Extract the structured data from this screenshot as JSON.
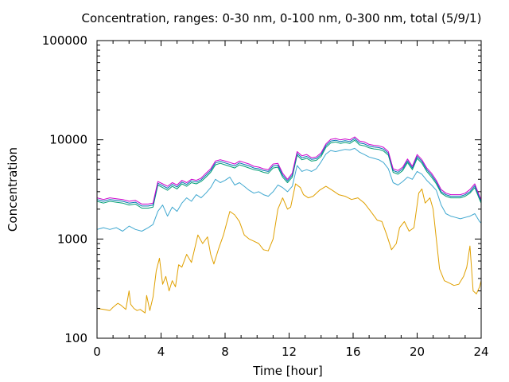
{
  "chart_data": {
    "type": "line",
    "title": "Concentration, ranges: 0-30 nm, 0-100 nm, 0-300 nm, total (5/9/1)",
    "xlabel": "Time [hour]",
    "ylabel": "Concentration",
    "xlim": [
      0,
      24
    ],
    "ylim": [
      100,
      100000
    ],
    "yscale": "log",
    "xticks": [
      "0",
      "4",
      "8",
      "12",
      "16",
      "20",
      "24"
    ],
    "yticks": [
      "100",
      "1000",
      "10000",
      "100000"
    ],
    "grid": false,
    "legend": "none",
    "series": [
      {
        "color": "#e0a000",
        "x": [
          0,
          0.4,
          0.8,
          1.0,
          1.3,
          1.5,
          1.8,
          2.0,
          2.1,
          2.3,
          2.5,
          2.7,
          3.0,
          3.1,
          3.3,
          3.5,
          3.7,
          3.9,
          4.1,
          4.3,
          4.5,
          4.7,
          4.9,
          5.1,
          5.3,
          5.6,
          5.9,
          6.1,
          6.3,
          6.6,
          6.9,
          7.1,
          7.3,
          7.6,
          7.9,
          8.1,
          8.3,
          8.6,
          8.9,
          9.2,
          9.5,
          9.8,
          10.1,
          10.4,
          10.7,
          11.0,
          11.3,
          11.6,
          11.9,
          12.1,
          12.4,
          12.7,
          12.9,
          13.2,
          13.5,
          13.9,
          14.3,
          14.7,
          15.1,
          15.5,
          15.9,
          16.3,
          16.7,
          17.1,
          17.5,
          17.8,
          18.1,
          18.4,
          18.7,
          18.9,
          19.2,
          19.5,
          19.8,
          20.1,
          20.3,
          20.5,
          20.8,
          21.0,
          21.2,
          21.4,
          21.7,
          22.0,
          22.3,
          22.6,
          22.9,
          23.1,
          23.3,
          23.5,
          23.7,
          23.9,
          24
        ],
        "values": [
          200,
          195,
          190,
          205,
          225,
          215,
          195,
          300,
          220,
          200,
          190,
          195,
          180,
          270,
          190,
          260,
          480,
          640,
          350,
          420,
          300,
          380,
          330,
          550,
          520,
          700,
          580,
          800,
          1100,
          900,
          1050,
          700,
          560,
          800,
          1100,
          1450,
          1900,
          1750,
          1500,
          1100,
          1000,
          950,
          900,
          780,
          760,
          1000,
          2000,
          2600,
          2000,
          2100,
          3600,
          3300,
          2800,
          2600,
          2700,
          3100,
          3400,
          3100,
          2800,
          2700,
          2500,
          2600,
          2300,
          1900,
          1550,
          1500,
          1100,
          780,
          900,
          1300,
          1500,
          1200,
          1300,
          2900,
          3200,
          2300,
          2600,
          2000,
          1000,
          500,
          380,
          360,
          340,
          350,
          420,
          520,
          850,
          300,
          280,
          330,
          380
        ]
      },
      {
        "color": "#40a8d0",
        "x": [
          0,
          0.4,
          0.8,
          1.2,
          1.6,
          2.0,
          2.4,
          2.8,
          3.2,
          3.5,
          3.8,
          4.1,
          4.4,
          4.7,
          5.0,
          5.3,
          5.6,
          5.9,
          6.2,
          6.5,
          6.8,
          7.1,
          7.4,
          7.7,
          8.0,
          8.3,
          8.6,
          8.9,
          9.2,
          9.5,
          9.8,
          10.1,
          10.4,
          10.7,
          11.0,
          11.3,
          11.6,
          11.9,
          12.2,
          12.5,
          12.8,
          13.1,
          13.4,
          13.7,
          14.0,
          14.3,
          14.6,
          14.9,
          15.2,
          15.5,
          15.8,
          16.1,
          16.4,
          16.7,
          17.0,
          17.3,
          17.6,
          17.9,
          18.2,
          18.5,
          18.8,
          19.1,
          19.4,
          19.7,
          20.0,
          20.3,
          20.6,
          20.9,
          21.2,
          21.5,
          21.8,
          22.1,
          22.4,
          22.7,
          23.0,
          23.3,
          23.6,
          23.9,
          24
        ],
        "values": [
          1250,
          1300,
          1250,
          1300,
          1200,
          1350,
          1250,
          1200,
          1300,
          1400,
          1900,
          2200,
          1700,
          2100,
          1900,
          2300,
          2600,
          2400,
          2800,
          2600,
          2900,
          3300,
          4000,
          3700,
          3900,
          4200,
          3500,
          3700,
          3400,
          3100,
          2900,
          3000,
          2800,
          2700,
          3000,
          3500,
          3300,
          3000,
          3400,
          5500,
          4800,
          5000,
          4800,
          5100,
          6000,
          7200,
          7800,
          7600,
          7800,
          8000,
          7900,
          8200,
          7500,
          7100,
          6700,
          6500,
          6300,
          5900,
          5100,
          3700,
          3500,
          3800,
          4200,
          4000,
          4800,
          4500,
          3900,
          3500,
          3100,
          2200,
          1800,
          1700,
          1650,
          1600,
          1650,
          1700,
          1800,
          1500,
          1450
        ]
      },
      {
        "color": "#009e73",
        "x": [
          0,
          0.4,
          0.8,
          1.2,
          1.6,
          2.0,
          2.4,
          2.8,
          3.2,
          3.5,
          3.8,
          4.1,
          4.4,
          4.7,
          5.0,
          5.3,
          5.6,
          5.9,
          6.2,
          6.5,
          6.8,
          7.1,
          7.4,
          7.7,
          8.0,
          8.3,
          8.6,
          8.9,
          9.2,
          9.5,
          9.8,
          10.1,
          10.4,
          10.7,
          11.0,
          11.3,
          11.6,
          11.9,
          12.2,
          12.5,
          12.8,
          13.1,
          13.4,
          13.7,
          14.0,
          14.3,
          14.6,
          14.9,
          15.2,
          15.5,
          15.8,
          16.1,
          16.4,
          16.7,
          17.0,
          17.3,
          17.6,
          17.9,
          18.2,
          18.5,
          18.8,
          19.1,
          19.4,
          19.7,
          20.0,
          20.3,
          20.6,
          20.9,
          21.2,
          21.5,
          21.8,
          22.1,
          22.4,
          22.7,
          23.0,
          23.3,
          23.6,
          23.9,
          24
        ],
        "values": [
          2400,
          2300,
          2400,
          2350,
          2300,
          2200,
          2250,
          2050,
          2050,
          2100,
          3500,
          3300,
          3100,
          3400,
          3200,
          3600,
          3400,
          3700,
          3600,
          3800,
          4200,
          4700,
          5600,
          5800,
          5600,
          5400,
          5200,
          5600,
          5400,
          5200,
          5000,
          4900,
          4700,
          4600,
          5200,
          5300,
          4200,
          3700,
          4200,
          7000,
          6300,
          6500,
          6100,
          6200,
          6800,
          8400,
          9300,
          9500,
          9200,
          9400,
          9200,
          9900,
          8900,
          8700,
          8300,
          8100,
          8000,
          7700,
          7000,
          4700,
          4500,
          4900,
          5900,
          5000,
          6500,
          5800,
          4800,
          4200,
          3600,
          2900,
          2700,
          2600,
          2600,
          2600,
          2700,
          2900,
          3300,
          2500,
          2300
        ]
      },
      {
        "color": "#0072b2",
        "x": [
          0,
          0.4,
          0.8,
          1.2,
          1.6,
          2.0,
          2.4,
          2.8,
          3.2,
          3.5,
          3.8,
          4.1,
          4.4,
          4.7,
          5.0,
          5.3,
          5.6,
          5.9,
          6.2,
          6.5,
          6.8,
          7.1,
          7.4,
          7.7,
          8.0,
          8.3,
          8.6,
          8.9,
          9.2,
          9.5,
          9.8,
          10.1,
          10.4,
          10.7,
          11.0,
          11.3,
          11.6,
          11.9,
          12.2,
          12.5,
          12.8,
          13.1,
          13.4,
          13.7,
          14.0,
          14.3,
          14.6,
          14.9,
          15.2,
          15.5,
          15.8,
          16.1,
          16.4,
          16.7,
          17.0,
          17.3,
          17.6,
          17.9,
          18.2,
          18.5,
          18.8,
          19.1,
          19.4,
          19.7,
          20.0,
          20.3,
          20.6,
          20.9,
          21.2,
          21.5,
          21.8,
          22.1,
          22.4,
          22.7,
          23.0,
          23.3,
          23.6,
          23.9,
          24
        ],
        "values": [
          2500,
          2400,
          2500,
          2450,
          2400,
          2300,
          2350,
          2150,
          2150,
          2200,
          3650,
          3450,
          3250,
          3550,
          3350,
          3750,
          3550,
          3850,
          3750,
          3950,
          4400,
          4900,
          5850,
          6050,
          5850,
          5650,
          5450,
          5850,
          5650,
          5450,
          5200,
          5100,
          4900,
          4800,
          5450,
          5550,
          4400,
          3850,
          4400,
          7300,
          6600,
          6800,
          6350,
          6450,
          7100,
          8750,
          9700,
          9900,
          9600,
          9800,
          9600,
          10300,
          9300,
          9100,
          8650,
          8450,
          8350,
          8050,
          7300,
          4900,
          4700,
          5100,
          6150,
          5200,
          6800,
          6050,
          5000,
          4400,
          3750,
          3000,
          2800,
          2700,
          2700,
          2700,
          2800,
          3000,
          3450,
          2600,
          2400
        ]
      },
      {
        "color": "#cc00cc",
        "x": [
          0,
          0.4,
          0.8,
          1.2,
          1.6,
          2.0,
          2.4,
          2.8,
          3.2,
          3.5,
          3.8,
          4.1,
          4.4,
          4.7,
          5.0,
          5.3,
          5.6,
          5.9,
          6.2,
          6.5,
          6.8,
          7.1,
          7.4,
          7.7,
          8.0,
          8.3,
          8.6,
          8.9,
          9.2,
          9.5,
          9.8,
          10.1,
          10.4,
          10.7,
          11.0,
          11.3,
          11.6,
          11.9,
          12.2,
          12.5,
          12.8,
          13.1,
          13.4,
          13.7,
          14.0,
          14.3,
          14.6,
          14.9,
          15.2,
          15.5,
          15.8,
          16.1,
          16.4,
          16.7,
          17.0,
          17.3,
          17.6,
          17.9,
          18.2,
          18.5,
          18.8,
          19.1,
          19.4,
          19.7,
          20.0,
          20.3,
          20.6,
          20.9,
          21.2,
          21.5,
          21.8,
          22.1,
          22.4,
          22.7,
          23.0,
          23.3,
          23.6,
          23.9,
          24
        ],
        "values": [
          2600,
          2500,
          2600,
          2550,
          2500,
          2400,
          2450,
          2250,
          2250,
          2300,
          3800,
          3600,
          3400,
          3700,
          3500,
          3900,
          3700,
          4000,
          3900,
          4100,
          4600,
          5100,
          6100,
          6300,
          6100,
          5900,
          5700,
          6100,
          5900,
          5700,
          5400,
          5300,
          5100,
          5000,
          5700,
          5800,
          4600,
          4000,
          4600,
          7600,
          6900,
          7100,
          6600,
          6700,
          7400,
          9100,
          10100,
          10300,
          10000,
          10200,
          10000,
          10700,
          9700,
          9500,
          9000,
          8800,
          8700,
          8400,
          7600,
          5100,
          4900,
          5300,
          6400,
          5400,
          7100,
          6300,
          5200,
          4600,
          3900,
          3150,
          2900,
          2800,
          2800,
          2800,
          2900,
          3150,
          3600,
          2700,
          2500
        ]
      }
    ]
  }
}
